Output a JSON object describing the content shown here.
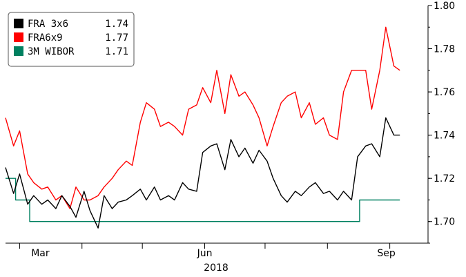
{
  "chart_data": {
    "type": "line",
    "title": "",
    "xlabel": "",
    "ylabel": "",
    "ylim": [
      1.69,
      1.8
    ],
    "y_ticks": [
      "1.70",
      "1.72",
      "1.74",
      "1.76",
      "1.78",
      "1.80"
    ],
    "x_ticks": [
      "Mar",
      "Jun",
      "Sep"
    ],
    "x_sublabel": "2018",
    "grid": false,
    "legend_position": "top-left",
    "series": [
      {
        "name": "FRA 3x6",
        "last_value": "1.74",
        "color": "#000000",
        "x": [
          "2018-02-22",
          "2018-02-26",
          "2018-03-01",
          "2018-03-05",
          "2018-03-08",
          "2018-03-12",
          "2018-03-15",
          "2018-03-19",
          "2018-03-22",
          "2018-03-26",
          "2018-03-29",
          "2018-04-02",
          "2018-04-05",
          "2018-04-09",
          "2018-04-12",
          "2018-04-16",
          "2018-04-19",
          "2018-04-23",
          "2018-04-26",
          "2018-04-30",
          "2018-05-03",
          "2018-05-07",
          "2018-05-10",
          "2018-05-14",
          "2018-05-17",
          "2018-05-21",
          "2018-05-24",
          "2018-05-28",
          "2018-05-31",
          "2018-06-04",
          "2018-06-07",
          "2018-06-11",
          "2018-06-14",
          "2018-06-18",
          "2018-06-21",
          "2018-06-25",
          "2018-06-28",
          "2018-07-02",
          "2018-07-05",
          "2018-07-09",
          "2018-07-12",
          "2018-07-16",
          "2018-07-19",
          "2018-07-23",
          "2018-07-26",
          "2018-07-30",
          "2018-08-02",
          "2018-08-06",
          "2018-08-09",
          "2018-08-13",
          "2018-08-16",
          "2018-08-20",
          "2018-08-23",
          "2018-08-27",
          "2018-08-30",
          "2018-09-03",
          "2018-09-06"
        ],
        "values": [
          1.725,
          1.713,
          1.722,
          1.708,
          1.712,
          1.708,
          1.71,
          1.706,
          1.712,
          1.707,
          1.702,
          1.714,
          1.705,
          1.697,
          1.712,
          1.706,
          1.709,
          1.71,
          1.712,
          1.715,
          1.71,
          1.716,
          1.71,
          1.712,
          1.71,
          1.718,
          1.715,
          1.714,
          1.732,
          1.735,
          1.736,
          1.724,
          1.738,
          1.73,
          1.734,
          1.727,
          1.733,
          1.728,
          1.72,
          1.712,
          1.709,
          1.714,
          1.712,
          1.716,
          1.718,
          1.713,
          1.714,
          1.71,
          1.714,
          1.71,
          1.73,
          1.735,
          1.736,
          1.73,
          1.748,
          1.74,
          1.74
        ]
      },
      {
        "name": "FRA6x9",
        "last_value": "1.77",
        "color": "#ff0000",
        "x": [
          "2018-02-22",
          "2018-02-26",
          "2018-03-01",
          "2018-03-05",
          "2018-03-08",
          "2018-03-12",
          "2018-03-15",
          "2018-03-19",
          "2018-03-22",
          "2018-03-26",
          "2018-03-29",
          "2018-04-02",
          "2018-04-05",
          "2018-04-09",
          "2018-04-12",
          "2018-04-16",
          "2018-04-19",
          "2018-04-23",
          "2018-04-26",
          "2018-04-30",
          "2018-05-03",
          "2018-05-07",
          "2018-05-10",
          "2018-05-14",
          "2018-05-17",
          "2018-05-21",
          "2018-05-24",
          "2018-05-28",
          "2018-05-31",
          "2018-06-04",
          "2018-06-07",
          "2018-06-11",
          "2018-06-14",
          "2018-06-18",
          "2018-06-21",
          "2018-06-25",
          "2018-06-28",
          "2018-07-02",
          "2018-07-05",
          "2018-07-09",
          "2018-07-12",
          "2018-07-16",
          "2018-07-19",
          "2018-07-23",
          "2018-07-26",
          "2018-07-30",
          "2018-08-02",
          "2018-08-06",
          "2018-08-09",
          "2018-08-13",
          "2018-08-16",
          "2018-08-20",
          "2018-08-23",
          "2018-08-27",
          "2018-08-30",
          "2018-09-03",
          "2018-09-06"
        ],
        "values": [
          1.748,
          1.735,
          1.742,
          1.722,
          1.718,
          1.715,
          1.716,
          1.71,
          1.712,
          1.706,
          1.716,
          1.71,
          1.71,
          1.712,
          1.716,
          1.72,
          1.724,
          1.728,
          1.726,
          1.746,
          1.755,
          1.752,
          1.744,
          1.746,
          1.744,
          1.74,
          1.752,
          1.754,
          1.762,
          1.755,
          1.77,
          1.75,
          1.768,
          1.758,
          1.76,
          1.754,
          1.748,
          1.735,
          1.744,
          1.755,
          1.758,
          1.76,
          1.748,
          1.755,
          1.745,
          1.748,
          1.74,
          1.738,
          1.76,
          1.77,
          1.77,
          1.77,
          1.752,
          1.77,
          1.79,
          1.772,
          1.77
        ]
      },
      {
        "name": "3M WIBOR",
        "last_value": "1.71",
        "color": "#008060",
        "x": [
          "2018-02-22",
          "2018-02-27",
          "2018-03-06",
          "2018-08-16",
          "2018-08-17",
          "2018-09-06"
        ],
        "values": [
          1.72,
          1.71,
          1.7,
          1.7,
          1.71,
          1.71
        ]
      }
    ]
  }
}
